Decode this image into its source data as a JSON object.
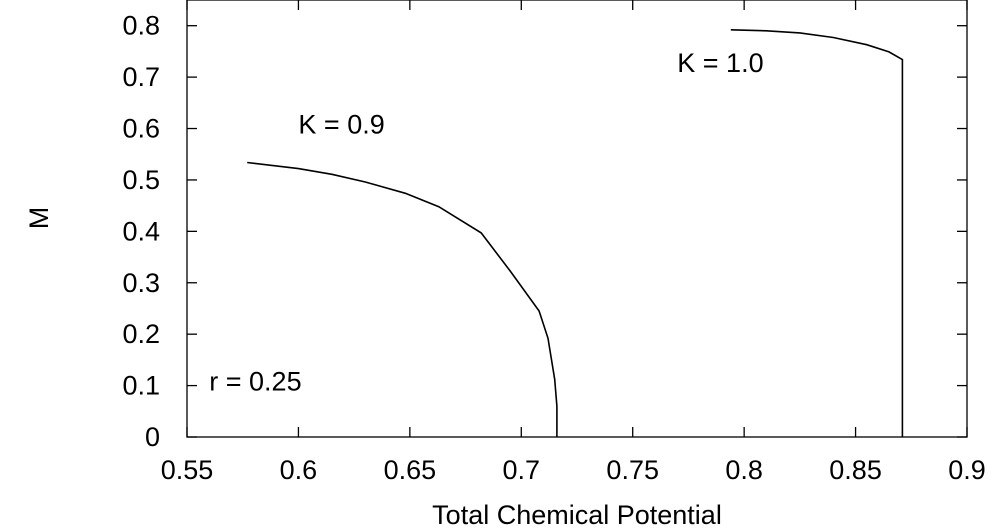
{
  "chart_data": {
    "type": "line",
    "title": "",
    "xlabel": "Total Chemical Potential",
    "ylabel": "M",
    "xlim": [
      0.55,
      0.9
    ],
    "ylim": [
      0,
      0.85
    ],
    "x_ticks": [
      "0.55",
      "0.6",
      "0.65",
      "0.7",
      "0.75",
      "0.8",
      "0.85",
      "0.9"
    ],
    "y_ticks": [
      "0",
      "0.1",
      "0.2",
      "0.3",
      "0.4",
      "0.5",
      "0.6",
      "0.7",
      "0.8"
    ],
    "grid": false,
    "legend": "none",
    "series": [
      {
        "label": "K = 0.9",
        "color": "#000000",
        "points": [
          [
            0.577,
            0.534
          ],
          [
            0.6,
            0.522
          ],
          [
            0.615,
            0.511
          ],
          [
            0.63,
            0.496
          ],
          [
            0.648,
            0.474
          ],
          [
            0.663,
            0.448
          ],
          [
            0.682,
            0.397
          ],
          [
            0.695,
            0.323
          ],
          [
            0.708,
            0.245
          ],
          [
            0.712,
            0.192
          ],
          [
            0.715,
            0.112
          ],
          [
            0.716,
            0.06
          ],
          [
            0.716,
            0.0
          ]
        ]
      },
      {
        "label": "K = 1.0",
        "color": "#000000",
        "points": [
          [
            0.794,
            0.792
          ],
          [
            0.81,
            0.79
          ],
          [
            0.825,
            0.786
          ],
          [
            0.84,
            0.777
          ],
          [
            0.855,
            0.763
          ],
          [
            0.865,
            0.749
          ],
          [
            0.871,
            0.734
          ],
          [
            0.871,
            0.0
          ]
        ]
      }
    ],
    "annotations": [
      {
        "text": "K = 0.9",
        "x": 0.6,
        "y": 0.59
      },
      {
        "text": "K = 1.0",
        "x": 0.77,
        "y": 0.71
      },
      {
        "text": "r = 0.25",
        "x": 0.56,
        "y": 0.09
      }
    ]
  }
}
